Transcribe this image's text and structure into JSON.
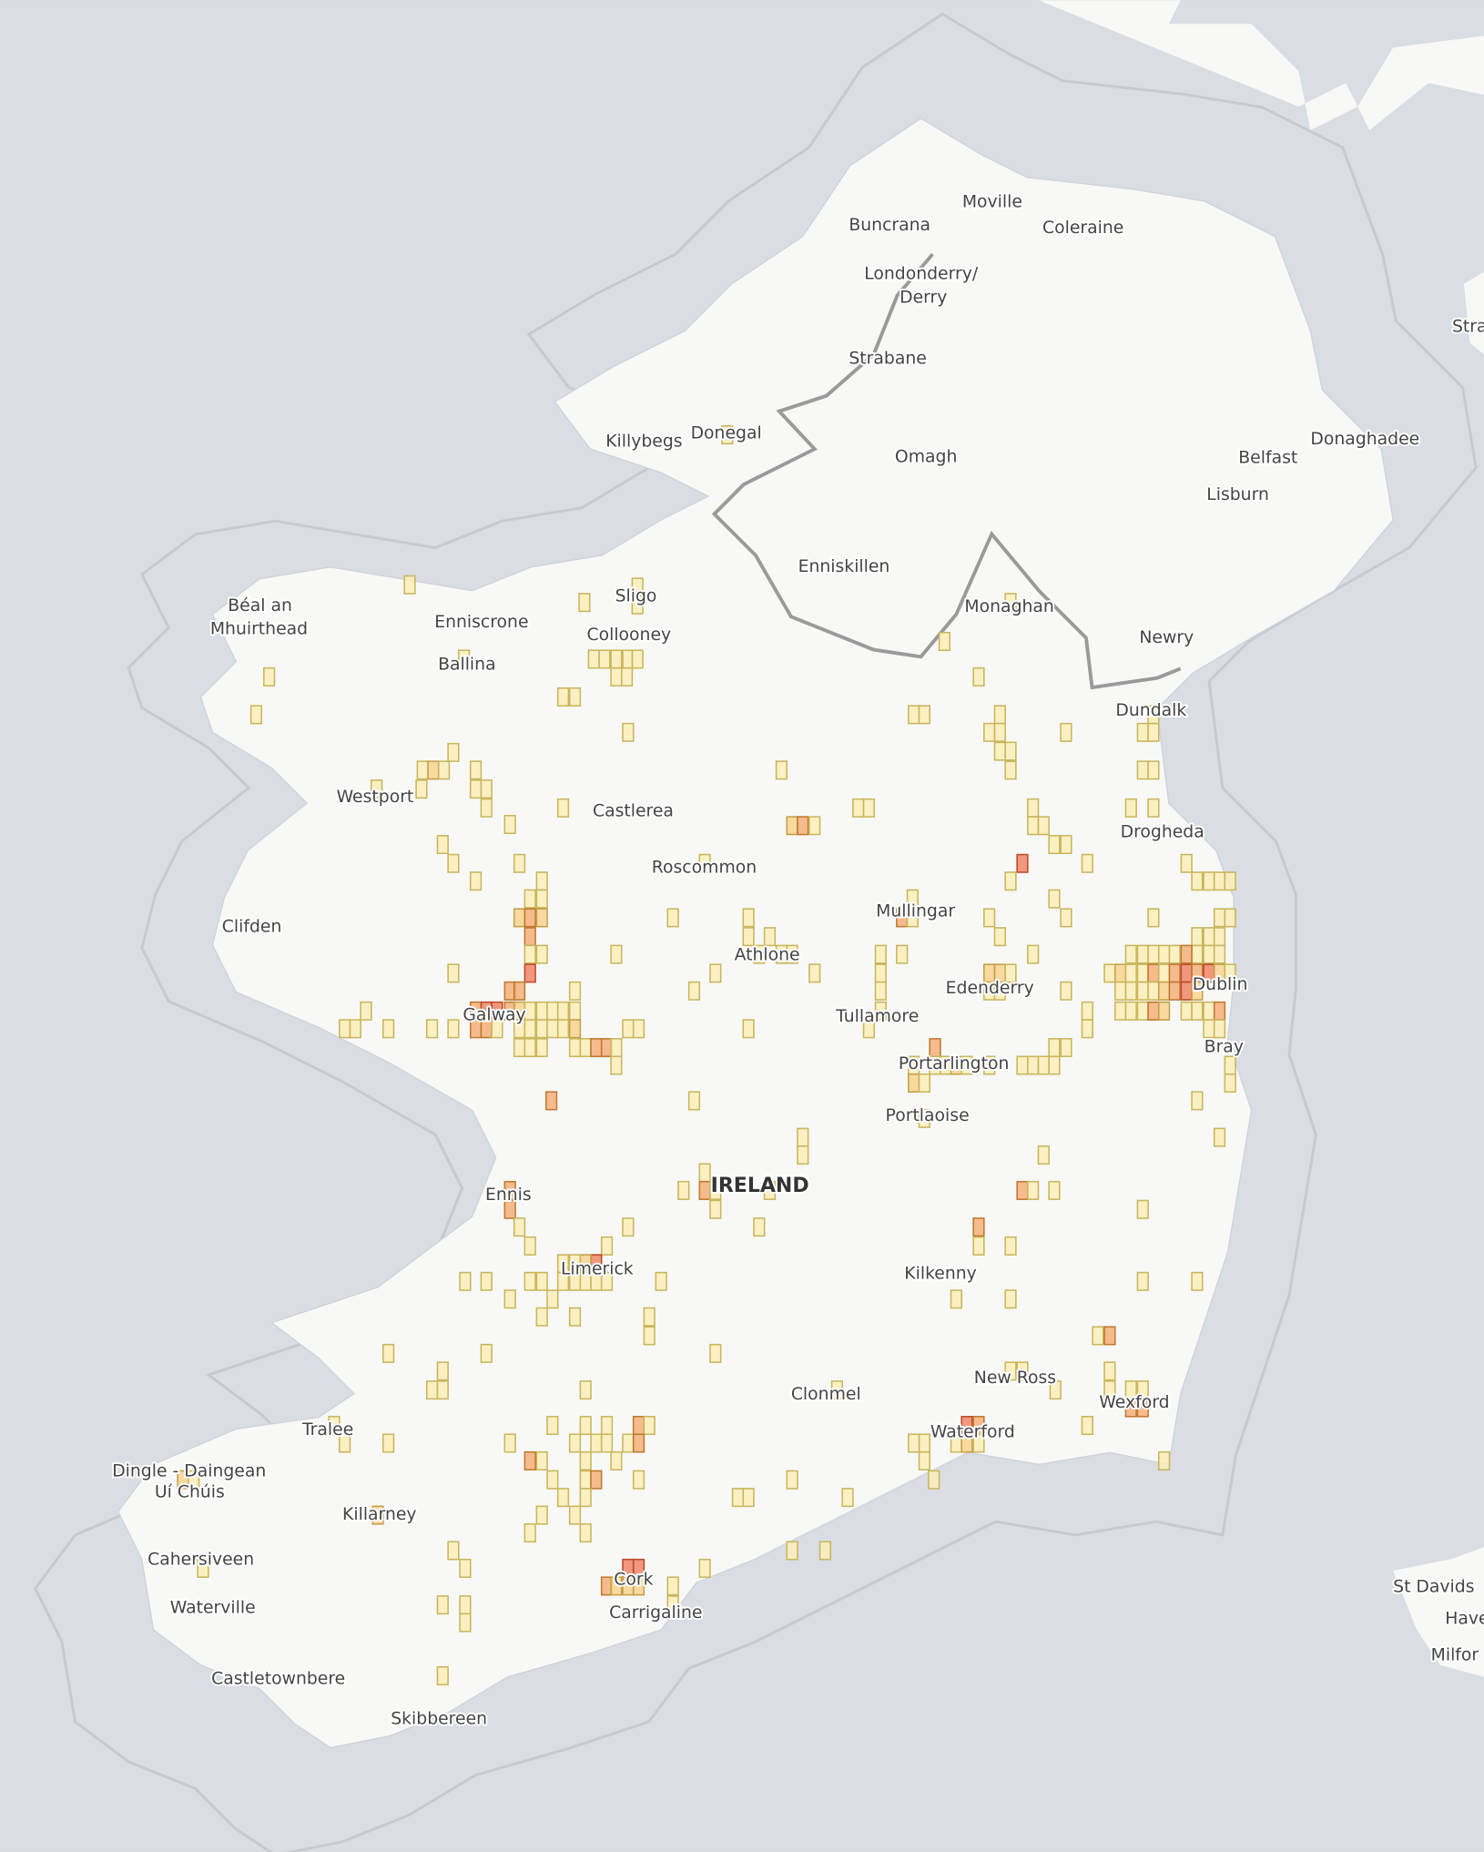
{
  "map": {
    "country_label": "IRELAND",
    "colors": {
      "sea": "#dadde3",
      "land": "#f8f8f7",
      "border": "#9a9a9a",
      "levels": [
        {
          "fill": "#fbefb8",
          "stroke": "#c9b65e"
        },
        {
          "fill": "#f8d590",
          "stroke": "#c5a04a"
        },
        {
          "fill": "#f4b07a",
          "stroke": "#bf7a30"
        },
        {
          "fill": "#ee8668",
          "stroke": "#bf4a2a"
        }
      ]
    },
    "places": [
      "Moville",
      "Buncrana",
      "Coleraine",
      "Londonderry/",
      "Derry",
      "Strabane",
      "Killybegs",
      "Donegal",
      "Omagh",
      "Belfast",
      "Donaghadee",
      "Lisburn",
      "Enniskillen",
      "Monaghan",
      "Newry",
      "Dundalk",
      "Sligo",
      "Collooney",
      "Béal an",
      "Mhuirthead",
      "Enniscrone",
      "Ballina",
      "Westport",
      "Castlerea",
      "Roscommon",
      "Drogheda",
      "Clifden",
      "Mullingar",
      "Athlone",
      "Edenderry",
      "Dublin",
      "Galway",
      "Tullamore",
      "Bray",
      "Portarlington",
      "Portlaoise",
      "Ennis",
      "Limerick",
      "Kilkenny",
      "Tralee",
      "Dingle - Daingean",
      "Uí Chúis",
      "Clonmel",
      "New Ross",
      "Wexford",
      "Waterford",
      "Killarney",
      "Cahersiveen",
      "Cork",
      "Carrigaline",
      "Waterville",
      "Castletownbere",
      "Skibbereen",
      "St Davids",
      "Haver",
      "Milfor",
      "Stra"
    ]
  }
}
